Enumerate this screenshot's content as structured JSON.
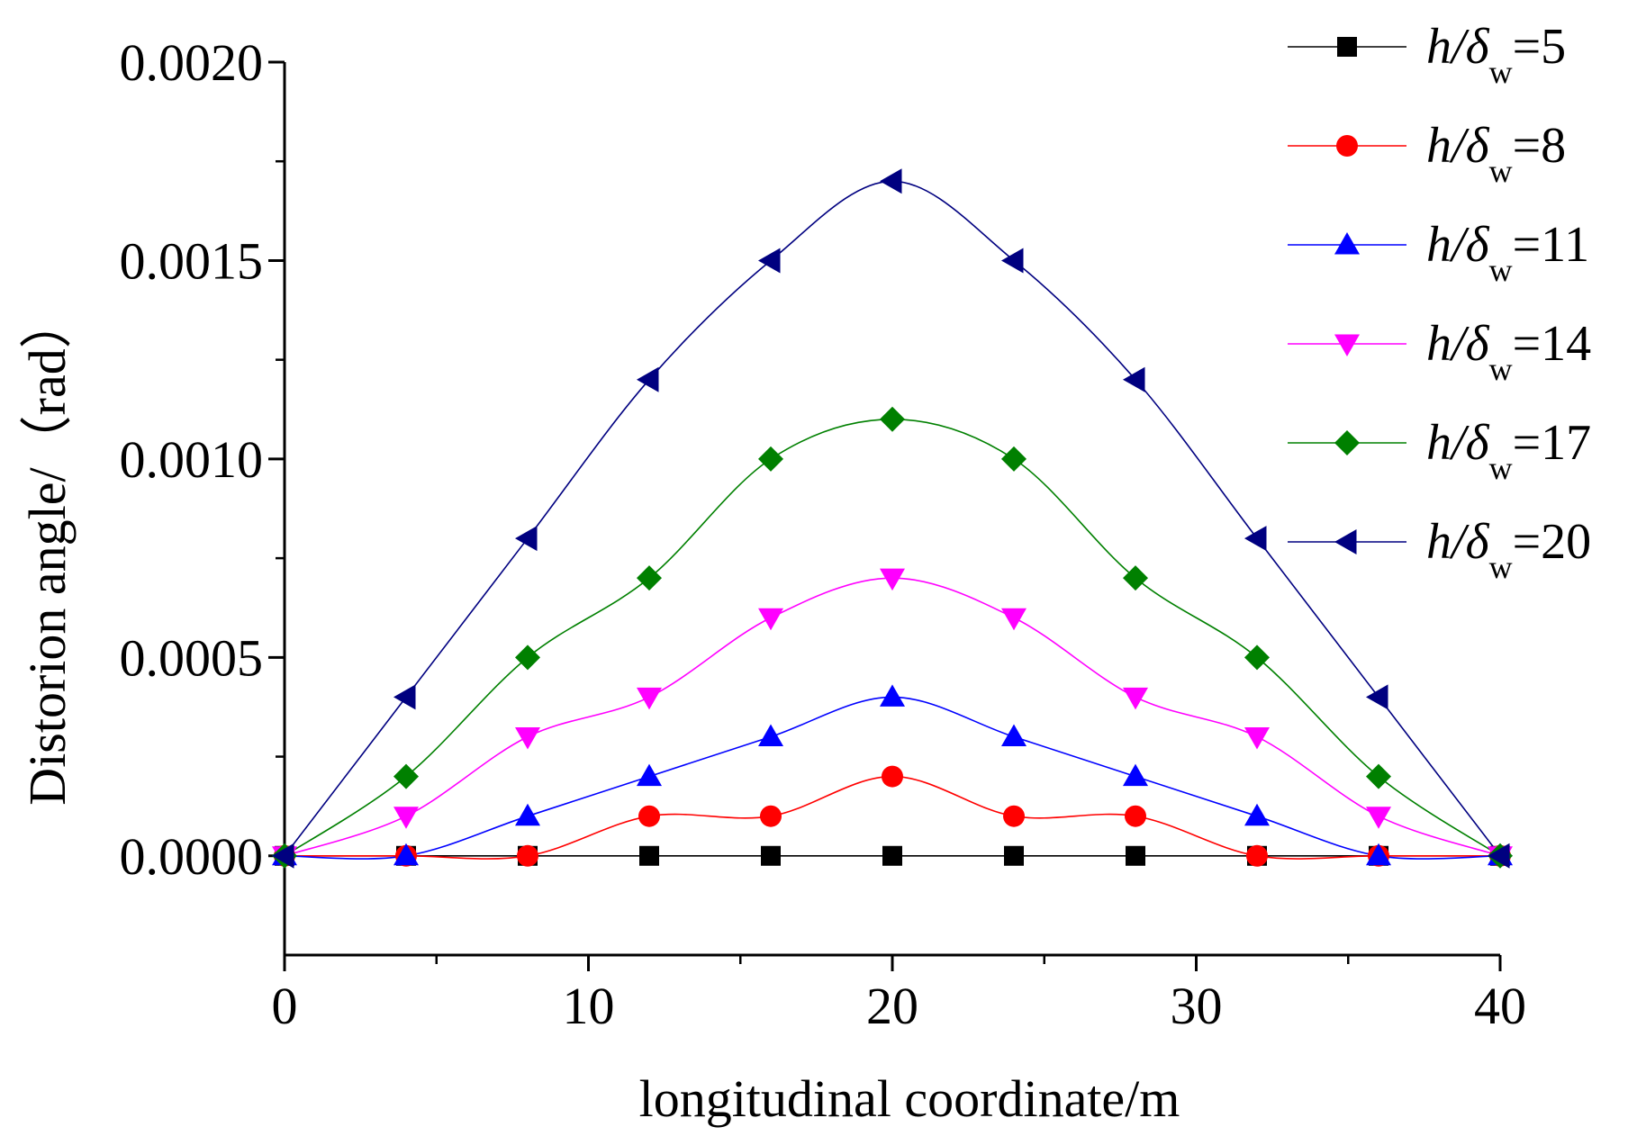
{
  "chart_data": {
    "type": "line",
    "title": "",
    "xlabel": "longitudinal coordinate/m",
    "ylabel": "Distorion angle/（rad）",
    "xlim": [
      0,
      40
    ],
    "ylim": [
      -0.00025,
      0.002
    ],
    "xticks": [
      0,
      10,
      20,
      30,
      40
    ],
    "xtick_labels": [
      "0",
      "10",
      "20",
      "30",
      "40"
    ],
    "yticks": [
      0,
      0.0005,
      0.001,
      0.0015,
      0.002
    ],
    "ytick_labels": [
      "0.0000",
      "0.0005",
      "0.0010",
      "0.0015",
      "0.0020"
    ],
    "legend_position": "top-right",
    "x": [
      0,
      4,
      8,
      12,
      16,
      20,
      24,
      28,
      32,
      36,
      40
    ],
    "series": [
      {
        "name": "h/δw=5",
        "label_main": "h/δ",
        "label_sub": "w",
        "label_tail": "=5",
        "color": "#000000",
        "marker": "square",
        "values": [
          0,
          0,
          0,
          0,
          0,
          0,
          0,
          0,
          0,
          0,
          0
        ]
      },
      {
        "name": "h/δw=8",
        "label_main": "h/δ",
        "label_sub": "w",
        "label_tail": "=8",
        "color": "#ff0000",
        "marker": "circle",
        "values": [
          0,
          0,
          0,
          0.0001,
          0.0001,
          0.0002,
          0.0001,
          0.0001,
          0,
          0,
          0
        ]
      },
      {
        "name": "h/δw=11",
        "label_main": "h/δ",
        "label_sub": "w",
        "label_tail": "=11",
        "color": "#0000ff",
        "marker": "triangle-up",
        "values": [
          0,
          0,
          0.0001,
          0.0002,
          0.0003,
          0.0004,
          0.0003,
          0.0002,
          0.0001,
          0,
          0
        ]
      },
      {
        "name": "h/δw=14",
        "label_main": "h/δ",
        "label_sub": "w",
        "label_tail": "=14",
        "color": "#ff00ff",
        "marker": "triangle-down",
        "values": [
          0,
          0.0001,
          0.0003,
          0.0004,
          0.0006,
          0.0007,
          0.0006,
          0.0004,
          0.0003,
          0.0001,
          0
        ]
      },
      {
        "name": "h/δw=17",
        "label_main": "h/δ",
        "label_sub": "w",
        "label_tail": "=17",
        "color": "#008000",
        "marker": "diamond",
        "values": [
          0,
          0.0002,
          0.0005,
          0.0007,
          0.001,
          0.0011,
          0.001,
          0.0007,
          0.0005,
          0.0002,
          0
        ]
      },
      {
        "name": "h/δw=20",
        "label_main": "h/δ",
        "label_sub": "w",
        "label_tail": "=20",
        "color": "#000080",
        "marker": "triangle-left",
        "values": [
          0,
          0.0004,
          0.0008,
          0.0012,
          0.0015,
          0.0017,
          0.0015,
          0.0012,
          0.0008,
          0.0004,
          0
        ]
      }
    ]
  }
}
